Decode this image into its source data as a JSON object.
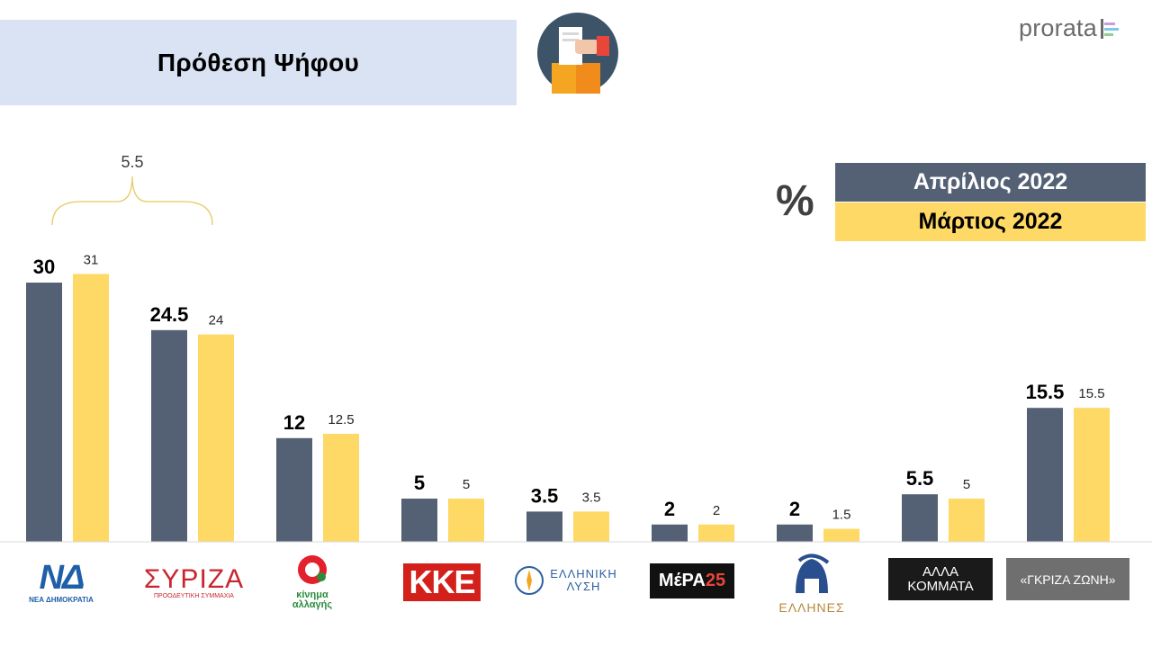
{
  "title": "Πρόθεση Ψήφου",
  "brand": "prorata",
  "percent_sign": "%",
  "legend": {
    "april": "Απρίλιος 2022",
    "march": "Μάρτιος 2022"
  },
  "colors": {
    "april": "#546174",
    "march": "#fed966",
    "title_bg": "#dae3f3",
    "bracket": "#e8c860"
  },
  "bracket_label": "5.5",
  "chart_data": {
    "type": "bar",
    "categories": [
      "ΝΔ",
      "ΣΥΡΙΖΑ",
      "ΚΙΝΑΛ",
      "ΚΚΕ",
      "ΕΛΛΗΝΙΚΗ ΛΥΣΗ",
      "ΜέΡΑ25",
      "ΕΛΛΗΝΕΣ",
      "ΑΛΛΑ ΚΟΜΜΑΤΑ",
      "«ΓΚΡΙΖΑ ΖΩΝΗ»"
    ],
    "series": [
      {
        "name": "Απρίλιος 2022",
        "values": [
          30,
          24.5,
          12,
          5,
          3.5,
          2,
          2,
          5.5,
          15.5
        ],
        "labels": [
          "30",
          "24.5",
          "12",
          "5",
          "3.5",
          "2",
          "2",
          "5.5",
          "15.5"
        ]
      },
      {
        "name": "Μάρτιος 2022",
        "values": [
          31,
          24,
          12.5,
          5,
          3.5,
          2,
          1.5,
          5,
          15.5
        ],
        "labels": [
          "31",
          "24",
          "12.5",
          "5",
          "3.5",
          "2",
          "1.5",
          "5",
          "15.5"
        ]
      }
    ],
    "ylim": [
      0,
      31
    ],
    "grid": false,
    "legend_position": "top-right"
  },
  "logos": {
    "nd": {
      "main": "ΝΔ",
      "sub": "ΝΕΑ ΔΗΜΟΚΡΑΤΙΑ"
    },
    "syriza": {
      "main": "ΣΥΡΙΖΑ",
      "sub": "ΠΡΟΟΔΕΥΤΙΚΗ ΣΥΜΜΑΧΙΑ"
    },
    "kinal": {
      "line1": "κίνημα",
      "line2": "αλλαγής"
    },
    "kke": {
      "main": "ΚΚΕ"
    },
    "ell_lysi": {
      "line1": "ΕΛΛΗΝΙΚΗ",
      "line2": "ΛΥΣΗ"
    },
    "mera25": {
      "main": "ΜέΡΑ",
      "num": "25"
    },
    "ellines": {
      "main": "ΕΛΛΗΝΕΣ"
    },
    "other": {
      "line1": "ΑΛΛΑ",
      "line2": "ΚΟΜΜΑΤΑ"
    },
    "grey_zone": {
      "main": "«ΓΚΡΙΖΑ ΖΩΝΗ»"
    }
  }
}
